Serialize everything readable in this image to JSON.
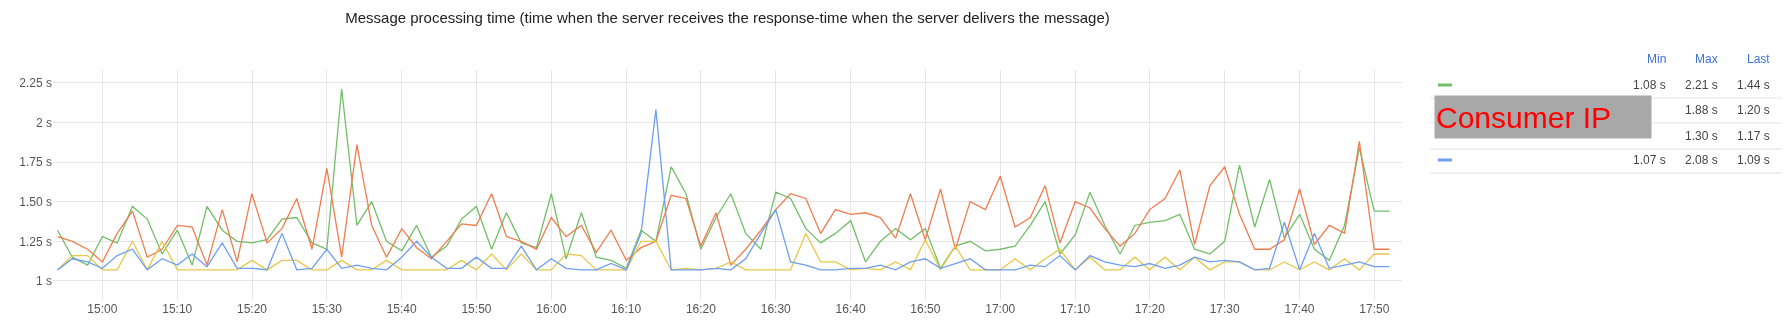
{
  "chart_data": {
    "type": "line",
    "title": "Message processing time (time when the server receives the response-time when the server delivers the message)",
    "x": [
      14.9,
      14.933,
      14.967,
      15,
      15.033,
      15.067,
      15.1,
      15.133,
      15.167,
      15.2,
      15.233,
      15.267,
      15.3,
      15.333,
      15.367,
      15.4,
      15.433,
      15.467,
      15.5,
      15.533,
      15.567,
      15.6,
      15.633,
      15.667,
      15.7,
      15.733,
      15.767,
      15.8,
      15.833,
      15.867,
      15.9,
      15.933,
      15.967,
      16,
      16.033,
      16.067,
      16.1,
      16.133,
      16.167,
      16.2,
      16.233,
      16.267,
      16.3,
      16.333,
      16.367,
      16.4,
      16.433,
      16.467,
      16.5,
      16.533,
      16.567,
      16.6,
      16.633,
      16.667,
      16.7,
      16.733,
      16.767,
      16.8,
      16.833,
      16.867,
      16.9,
      16.933,
      16.967,
      17,
      17.033,
      17.067,
      17.1,
      17.133,
      17.167,
      17.2,
      17.233,
      17.267,
      17.3,
      17.333,
      17.367,
      17.4,
      17.433,
      17.467,
      17.5,
      17.533,
      17.567,
      17.6,
      17.633,
      17.667,
      17.7,
      17.733,
      17.767,
      17.8,
      17.833,
      17.867
    ],
    "series": [
      {
        "color": "#73bf69",
        "values": [
          1.32,
          1.15,
          1.1,
          1.28,
          1.24,
          1.47,
          1.39,
          1.17,
          1.32,
          1.1,
          1.47,
          1.32,
          1.25,
          1.24,
          1.26,
          1.39,
          1.4,
          1.24,
          1.2,
          2.21,
          1.35,
          1.5,
          1.25,
          1.19,
          1.35,
          1.15,
          1.22,
          1.39,
          1.47,
          1.2,
          1.43,
          1.24,
          1.21,
          1.55,
          1.14,
          1.43,
          1.15,
          1.13,
          1.08,
          1.32,
          1.25,
          1.72,
          1.55,
          1.2,
          1.4,
          1.55,
          1.3,
          1.2,
          1.56,
          1.52,
          1.33,
          1.24,
          1.3,
          1.38,
          1.12,
          1.25,
          1.33,
          1.26,
          1.33,
          1.08,
          1.22,
          1.25,
          1.19,
          1.2,
          1.22,
          1.35,
          1.5,
          1.17,
          1.29,
          1.56,
          1.35,
          1.17,
          1.35,
          1.37,
          1.38,
          1.42,
          1.2,
          1.17,
          1.25,
          1.73,
          1.34,
          1.64,
          1.27,
          1.42,
          1.2,
          1.13,
          1.35,
          1.84,
          1.44,
          1.44
        ]
      },
      {
        "color": "#ef7d4f",
        "values": [
          1.28,
          1.25,
          1.2,
          1.12,
          1.3,
          1.44,
          1.15,
          1.2,
          1.35,
          1.34,
          1.1,
          1.45,
          1.12,
          1.55,
          1.24,
          1.33,
          1.52,
          1.2,
          1.71,
          1.15,
          1.86,
          1.35,
          1.15,
          1.33,
          1.21,
          1.14,
          1.25,
          1.36,
          1.35,
          1.55,
          1.28,
          1.25,
          1.2,
          1.4,
          1.28,
          1.35,
          1.18,
          1.32,
          1.13,
          1.21,
          1.25,
          1.54,
          1.52,
          1.22,
          1.43,
          1.1,
          1.2,
          1.32,
          1.45,
          1.55,
          1.52,
          1.3,
          1.45,
          1.42,
          1.43,
          1.4,
          1.27,
          1.55,
          1.26,
          1.58,
          1.2,
          1.5,
          1.45,
          1.66,
          1.34,
          1.4,
          1.6,
          1.24,
          1.5,
          1.46,
          1.33,
          1.22,
          1.3,
          1.45,
          1.52,
          1.7,
          1.23,
          1.6,
          1.72,
          1.42,
          1.2,
          1.2,
          1.26,
          1.58,
          1.23,
          1.35,
          1.3,
          1.88,
          1.2,
          1.2
        ]
      },
      {
        "color": "#e8c84a",
        "values": [
          1.07,
          1.16,
          1.16,
          1.07,
          1.07,
          1.25,
          1.07,
          1.25,
          1.07,
          1.07,
          1.07,
          1.07,
          1.07,
          1.13,
          1.07,
          1.13,
          1.13,
          1.07,
          1.07,
          1.13,
          1.07,
          1.07,
          1.13,
          1.07,
          1.07,
          1.07,
          1.07,
          1.13,
          1.07,
          1.17,
          1.07,
          1.17,
          1.07,
          1.07,
          1.17,
          1.16,
          1.07,
          1.07,
          1.07,
          1.25,
          1.25,
          1.07,
          1.08,
          1.07,
          1.08,
          1.12,
          1.07,
          1.07,
          1.07,
          1.07,
          1.3,
          1.12,
          1.12,
          1.07,
          1.08,
          1.07,
          1.12,
          1.07,
          1.26,
          1.07,
          1.22,
          1.07,
          1.07,
          1.07,
          1.14,
          1.07,
          1.14,
          1.2,
          1.07,
          1.15,
          1.07,
          1.07,
          1.15,
          1.07,
          1.15,
          1.07,
          1.15,
          1.07,
          1.12,
          1.12,
          1.07,
          1.07,
          1.12,
          1.07,
          1.12,
          1.07,
          1.14,
          1.07,
          1.17,
          1.17
        ]
      },
      {
        "color": "#6e9ff0",
        "values": [
          1.07,
          1.14,
          1.12,
          1.08,
          1.16,
          1.2,
          1.07,
          1.14,
          1.1,
          1.17,
          1.09,
          1.24,
          1.08,
          1.08,
          1.07,
          1.3,
          1.07,
          1.08,
          1.2,
          1.08,
          1.1,
          1.08,
          1.07,
          1.15,
          1.25,
          1.15,
          1.08,
          1.08,
          1.15,
          1.08,
          1.08,
          1.22,
          1.07,
          1.14,
          1.08,
          1.07,
          1.07,
          1.11,
          1.07,
          1.3,
          2.08,
          1.07,
          1.07,
          1.07,
          1.08,
          1.07,
          1.14,
          1.3,
          1.45,
          1.12,
          1.1,
          1.07,
          1.07,
          1.08,
          1.08,
          1.1,
          1.07,
          1.12,
          1.14,
          1.08,
          1.11,
          1.14,
          1.07,
          1.07,
          1.07,
          1.1,
          1.09,
          1.16,
          1.07,
          1.16,
          1.12,
          1.1,
          1.09,
          1.11,
          1.08,
          1.1,
          1.15,
          1.12,
          1.13,
          1.12,
          1.07,
          1.08,
          1.37,
          1.07,
          1.3,
          1.08,
          1.1,
          1.12,
          1.09,
          1.09
        ]
      }
    ],
    "xlim": [
      14.89,
      17.895
    ],
    "xticks": [
      {
        "value": 15,
        "label": "15:00"
      },
      {
        "value": 15.1667,
        "label": "15:10"
      },
      {
        "value": 15.3333,
        "label": "15:20"
      },
      {
        "value": 15.5,
        "label": "15:30"
      },
      {
        "value": 15.6667,
        "label": "15:40"
      },
      {
        "value": 15.8333,
        "label": "15:50"
      },
      {
        "value": 16,
        "label": "16:00"
      },
      {
        "value": 16.1667,
        "label": "16:10"
      },
      {
        "value": 16.3333,
        "label": "16:20"
      },
      {
        "value": 16.5,
        "label": "16:30"
      },
      {
        "value": 16.6667,
        "label": "16:40"
      },
      {
        "value": 16.8333,
        "label": "16:50"
      },
      {
        "value": 17,
        "label": "17:00"
      },
      {
        "value": 17.1667,
        "label": "17:10"
      },
      {
        "value": 17.3333,
        "label": "17:20"
      },
      {
        "value": 17.5,
        "label": "17:30"
      },
      {
        "value": 17.6667,
        "label": "17:40"
      },
      {
        "value": 17.8333,
        "label": "17:50"
      }
    ],
    "ylim": [
      0.88,
      2.33
    ],
    "yticks": [
      {
        "value": 1,
        "label": "1 s"
      },
      {
        "value": 1.25,
        "label": "1.25 s"
      },
      {
        "value": 1.5,
        "label": "1.50 s"
      },
      {
        "value": 1.75,
        "label": "1.75 s"
      },
      {
        "value": 2,
        "label": "2 s"
      },
      {
        "value": 2.25,
        "label": "2.25 s"
      }
    ],
    "grid": true,
    "marker": "none",
    "line_style": "solid",
    "annotations": [
      "Min",
      "Max",
      "Last",
      "1.08 s",
      "2.21 s",
      "1.44 s",
      "1.88 s",
      "1.20 s",
      "1.30 s",
      "1.17 s",
      "1.07 s",
      "2.08 s",
      "1.09 s",
      "Consumer IP"
    ]
  }
}
